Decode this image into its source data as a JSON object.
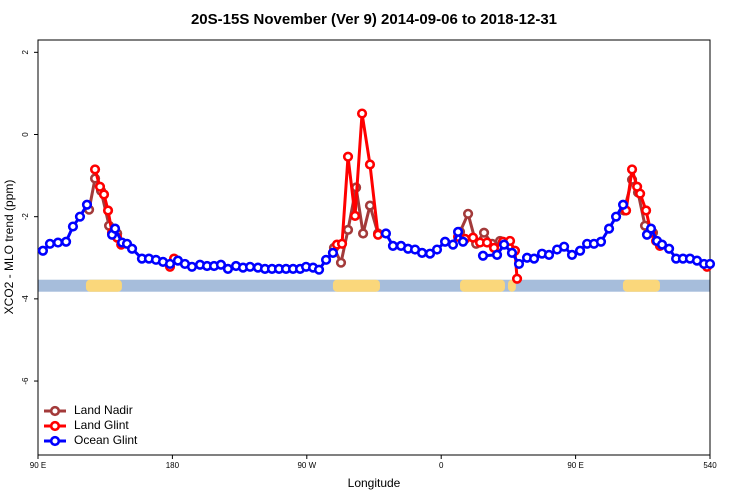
{
  "chart_data": {
    "type": "line",
    "title": "20S-15S November (Ver 9)   2014-09-06 to 2018-12-31",
    "x_label": "Longitude",
    "y_label": "XCO2 - MLO trend (ppm)",
    "xlim": [
      90,
      540
    ],
    "xticks": [
      {
        "value": 90,
        "label": "90 E"
      },
      180,
      {
        "value": 270,
        "label": "90 W"
      },
      {
        "value": 360,
        "label": "0"
      },
      {
        "value": 450,
        "label": "90 E"
      },
      540
    ],
    "ylim": [
      -7.8,
      2.3
    ],
    "yticks": [
      2,
      0,
      -2,
      -4,
      -6
    ],
    "legend": "bottom-left",
    "land_band": {
      "y": -3.68,
      "ocean_color": "#a6bddb",
      "land_color": "#fad77b",
      "land_longitudes": [
        [
          122.1,
          146.2
        ],
        [
          287.5,
          319.0
        ],
        [
          372.6,
          402.7
        ],
        [
          404.7,
          410.0
        ],
        [
          481.7,
          506.5
        ]
      ]
    },
    "series": [
      {
        "name": "Land Nadir",
        "color": "#a33a3a",
        "x": [
          124.2,
          128.2,
          132.2,
          137.6,
          143.0,
          null,
          288.2,
          292.9,
          297.6,
          303.0,
          307.7,
          312.3,
          317.7,
          null,
          372.6,
          378.0,
          383.4,
          388.7,
          394.1,
          399.4,
          null,
          482.4,
          487.8,
          491.8,
          496.5,
          501.8
        ],
        "values": [
          -1.83,
          -1.07,
          -1.37,
          -2.22,
          -2.41,
          null,
          -2.76,
          -3.12,
          -2.32,
          -1.29,
          -2.41,
          -1.73,
          -2.41,
          null,
          -2.37,
          -1.93,
          -2.66,
          -2.39,
          -2.66,
          -2.59,
          null,
          -1.85,
          -1.1,
          -1.41,
          -2.22,
          -2.39
        ]
      },
      {
        "name": "Land Glint",
        "color": "#ff0000",
        "x": [
          128.2,
          131.5,
          134.2,
          136.9,
          139.6,
          143.0,
          145.7,
          null,
          178.4,
          181.1,
          null,
          290.2,
          293.6,
          297.6,
          302.3,
          307.0,
          312.3,
          317.7,
          null,
          371.3,
          376.0,
          381.3,
          386.0,
          390.7,
          395.4,
          401.4,
          406.1,
          409.4,
          410.8,
          null,
          483.8,
          487.8,
          491.2,
          493.2,
          497.2,
          500.5,
          503.9,
          506.5,
          null,
          538.0
        ],
        "values": [
          -0.85,
          -1.27,
          -1.46,
          -1.85,
          -2.39,
          -2.51,
          -2.68,
          null,
          -3.22,
          -3.02,
          null,
          -2.68,
          -2.66,
          -0.54,
          -1.98,
          0.51,
          -0.73,
          -2.44,
          null,
          -2.49,
          -2.54,
          -2.51,
          -2.63,
          -2.63,
          -2.76,
          -2.61,
          -2.59,
          -2.83,
          -3.51,
          null,
          -1.85,
          -0.85,
          -1.27,
          -1.44,
          -1.85,
          -2.39,
          -2.59,
          -2.71,
          null,
          -3.22
        ]
      },
      {
        "name": "Ocean Glint",
        "color": "#0000ff",
        "x": [
          93.3,
          98.0,
          103.4,
          108.8,
          113.4,
          118.1,
          122.8,
          null,
          139.6,
          141.6,
          146.3,
          149.6,
          153.0,
          159.6,
          164.3,
          169.0,
          173.7,
          178.4,
          183.7,
          188.4,
          193.1,
          198.5,
          203.2,
          207.9,
          212.5,
          217.2,
          222.6,
          227.3,
          232.0,
          237.3,
          242.0,
          246.7,
          251.4,
          256.1,
          260.8,
          265.5,
          269.5,
          274.2,
          278.2,
          282.9,
          287.5,
          null,
          323.0,
          327.7,
          333.1,
          337.8,
          342.5,
          347.2,
          352.5,
          357.2,
          362.6,
          367.9,
          371.3,
          374.6,
          null,
          388.0,
          397.4,
          402.1,
          407.4,
          412.1,
          417.5,
          422.2,
          427.5,
          432.2,
          437.6,
          442.3,
          447.6,
          453.0,
          457.7,
          462.3,
          467.0,
          472.4,
          477.1,
          481.8,
          null,
          497.8,
          500.5,
          504.5,
          507.9,
          512.6,
          517.3,
          521.9,
          526.6,
          531.3,
          536.0,
          540.0
        ],
        "values": [
          -2.83,
          -2.66,
          -2.63,
          -2.61,
          -2.24,
          -2.0,
          -1.71,
          null,
          -2.44,
          -2.29,
          -2.63,
          -2.66,
          -2.78,
          -3.02,
          -3.02,
          -3.05,
          -3.1,
          -3.15,
          -3.07,
          -3.15,
          -3.22,
          -3.17,
          -3.2,
          -3.2,
          -3.17,
          -3.27,
          -3.2,
          -3.24,
          -3.22,
          -3.24,
          -3.27,
          -3.27,
          -3.27,
          -3.27,
          -3.27,
          -3.27,
          -3.22,
          -3.24,
          -3.29,
          -3.05,
          -2.88,
          null,
          -2.41,
          -2.71,
          -2.71,
          -2.78,
          -2.8,
          -2.88,
          -2.9,
          -2.8,
          -2.61,
          -2.68,
          -2.37,
          -2.61,
          null,
          -2.95,
          -2.93,
          -2.68,
          -2.88,
          -3.15,
          -3.0,
          -3.02,
          -2.9,
          -2.93,
          -2.8,
          -2.73,
          -2.93,
          -2.83,
          -2.66,
          -2.66,
          -2.61,
          -2.29,
          -2.0,
          -1.71,
          null,
          -2.44,
          -2.29,
          -2.59,
          -2.68,
          -2.78,
          -3.02,
          -3.02,
          -3.02,
          -3.07,
          -3.15,
          -3.15
        ]
      }
    ]
  }
}
